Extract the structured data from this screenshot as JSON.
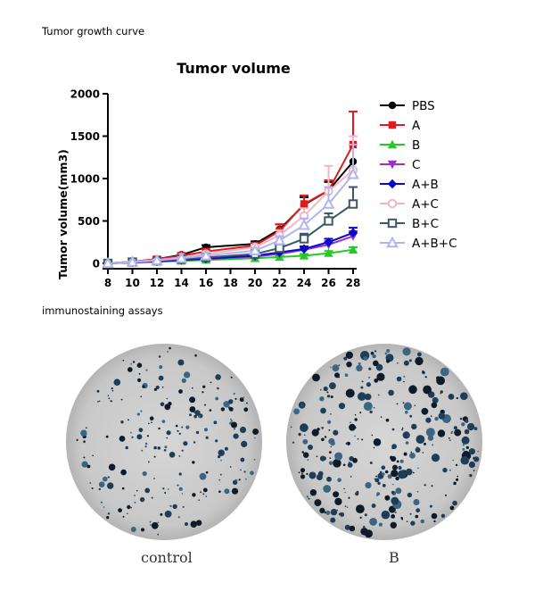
{
  "section_titles": {
    "growth": "Tumor growth curve",
    "immuno": "immunostaining assays"
  },
  "chart_data": {
    "type": "line",
    "title": "Tumor volume",
    "xlabel": "",
    "ylabel": "Tumor volume(mm3)",
    "x": [
      8,
      10,
      12,
      14,
      16,
      18,
      20,
      22,
      24,
      26,
      28
    ],
    "xlim": [
      8,
      28
    ],
    "ylim": [
      0,
      2000
    ],
    "yticks": [
      0,
      500,
      1000,
      1500,
      2000
    ],
    "grid": false,
    "legend_position": "right",
    "series": [
      {
        "name": "PBS",
        "color": "#000000",
        "marker": "circle",
        "x": [
          8,
          10,
          12,
          14,
          16,
          20,
          22,
          24,
          26,
          28
        ],
        "values": [
          0,
          20,
          50,
          100,
          190,
          230,
          400,
          690,
          860,
          1200
        ],
        "err": [
          0,
          10,
          15,
          20,
          25,
          30,
          60,
          90,
          100,
          300
        ]
      },
      {
        "name": "A",
        "color": "#e31a1c",
        "marker": "square",
        "x": [
          8,
          10,
          12,
          14,
          16,
          20,
          22,
          24,
          26,
          28
        ],
        "values": [
          0,
          20,
          50,
          90,
          140,
          210,
          380,
          700,
          860,
          1400
        ],
        "err": [
          0,
          10,
          15,
          25,
          25,
          30,
          80,
          100,
          120,
          390
        ]
      },
      {
        "name": "B",
        "color": "#22cc22",
        "marker": "triangle-up",
        "x": [
          8,
          10,
          12,
          14,
          16,
          20,
          22,
          24,
          26,
          28
        ],
        "values": [
          0,
          10,
          20,
          30,
          40,
          60,
          75,
          90,
          120,
          160
        ],
        "err": [
          0,
          5,
          5,
          8,
          10,
          10,
          15,
          20,
          25,
          30
        ]
      },
      {
        "name": "C",
        "color": "#9933cc",
        "marker": "triangle-down",
        "x": [
          8,
          10,
          12,
          14,
          16,
          20,
          22,
          24,
          26,
          28
        ],
        "values": [
          0,
          10,
          20,
          35,
          50,
          80,
          110,
          160,
          220,
          320
        ],
        "err": [
          0,
          5,
          8,
          10,
          12,
          15,
          20,
          30,
          40,
          60
        ]
      },
      {
        "name": "A+B",
        "color": "#0a0acc",
        "marker": "diamond",
        "x": [
          8,
          10,
          12,
          14,
          16,
          20,
          22,
          24,
          26,
          28
        ],
        "values": [
          0,
          10,
          25,
          40,
          55,
          90,
          130,
          170,
          250,
          360
        ],
        "err": [
          0,
          5,
          8,
          10,
          12,
          15,
          25,
          30,
          40,
          60
        ]
      },
      {
        "name": "A+C",
        "color": "#f2b6c6",
        "marker": "circle-open",
        "x": [
          8,
          10,
          12,
          14,
          16,
          20,
          22,
          24,
          26,
          28
        ],
        "values": [
          0,
          20,
          40,
          70,
          110,
          190,
          330,
          560,
          850,
          1100
        ],
        "err": [
          0,
          10,
          12,
          18,
          20,
          30,
          60,
          90,
          300,
          400
        ]
      },
      {
        "name": "B+C",
        "color": "#3c5866",
        "marker": "square-open",
        "x": [
          8,
          10,
          12,
          14,
          16,
          20,
          22,
          24,
          26,
          28
        ],
        "values": [
          0,
          15,
          30,
          50,
          70,
          110,
          180,
          290,
          500,
          700
        ],
        "err": [
          0,
          8,
          10,
          12,
          15,
          20,
          40,
          60,
          90,
          200
        ]
      },
      {
        "name": "A+B+C",
        "color": "#b0b4f0",
        "marker": "triangle-open",
        "x": [
          8,
          10,
          12,
          14,
          16,
          20,
          22,
          24,
          26,
          28
        ],
        "values": [
          0,
          15,
          35,
          60,
          90,
          150,
          270,
          450,
          700,
          1050
        ],
        "err": [
          0,
          8,
          10,
          15,
          20,
          30,
          50,
          80,
          200,
          350
        ]
      }
    ]
  },
  "image_panels": [
    {
      "caption": "control"
    },
    {
      "caption": "B"
    }
  ]
}
